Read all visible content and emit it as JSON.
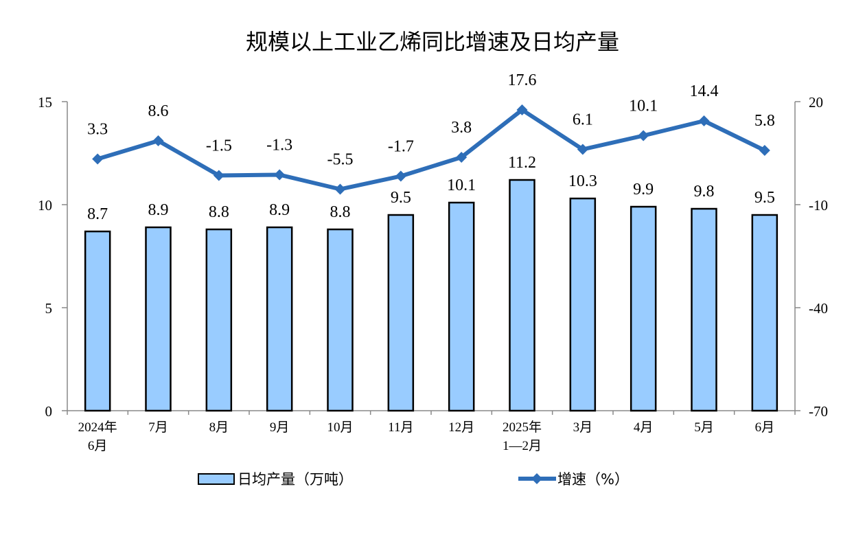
{
  "chart_data": {
    "type": "bar+line",
    "title": "规模以上工业乙烯同比增速及日均产量",
    "categories": [
      "2024年\n6月",
      "7月",
      "8月",
      "9月",
      "10月",
      "11月",
      "12月",
      "2025年\n1—2月",
      "3月",
      "4月",
      "5月",
      "6月"
    ],
    "series": [
      {
        "name": "日均产量（万吨）",
        "type": "bar",
        "axis": "left",
        "color": "#99CCFF",
        "values": [
          8.7,
          8.9,
          8.8,
          8.9,
          8.8,
          9.5,
          10.1,
          11.2,
          10.3,
          9.9,
          9.8,
          9.5
        ]
      },
      {
        "name": "增速（%）",
        "type": "line",
        "axis": "right",
        "color": "#2E6EB8",
        "marker": "diamond",
        "values": [
          3.3,
          8.6,
          -1.5,
          -1.3,
          -5.5,
          -1.7,
          3.8,
          17.6,
          6.1,
          10.1,
          14.4,
          5.8
        ]
      }
    ],
    "left_axis": {
      "ylim": [
        0,
        15
      ],
      "ticks": [
        0,
        5,
        10,
        15
      ]
    },
    "right_axis": {
      "ylim": [
        -70,
        20
      ],
      "ticks": [
        -70,
        -40,
        -10,
        20
      ]
    },
    "grid": false,
    "legend": "bottom"
  }
}
